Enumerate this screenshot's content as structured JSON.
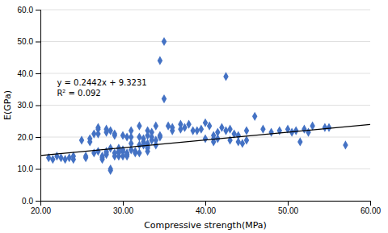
{
  "chart_data": {
    "type": "scatter",
    "xlabel": "Compressive strength(MPa)",
    "ylabel": "E(GPa)",
    "xlim": [
      20.0,
      60.0
    ],
    "ylim": [
      0.0,
      60.0
    ],
    "xticks": [
      {
        "value": 20.0,
        "label": "20.00"
      },
      {
        "value": 30.0,
        "label": "30.00"
      },
      {
        "value": 40.0,
        "label": "40.00"
      },
      {
        "value": 50.0,
        "label": "50.00"
      },
      {
        "value": 60.0,
        "label": "60.00"
      }
    ],
    "yticks": [
      {
        "value": 0.0,
        "label": "0.0"
      },
      {
        "value": 10.0,
        "label": "10.0"
      },
      {
        "value": 20.0,
        "label": "20.0"
      },
      {
        "value": 30.0,
        "label": "30.0"
      },
      {
        "value": 40.0,
        "label": "40.0"
      },
      {
        "value": 50.0,
        "label": "50.0"
      },
      {
        "value": 60.0,
        "label": "60.0"
      }
    ],
    "grid": true,
    "series": [
      {
        "type": "scatter",
        "color": "#4472C4",
        "marker": "diamond",
        "x": [
          21.0,
          21.5,
          22.0,
          22.5,
          23.0,
          23.5,
          24.0,
          24.0,
          25.0,
          25.5,
          25.5,
          26.0,
          26.0,
          26.5,
          26.5,
          27.0,
          27.0,
          27.0,
          27.0,
          27.5,
          27.5,
          27.5,
          28.0,
          28.0,
          28.0,
          28.0,
          28.0,
          28.5,
          28.5,
          28.5,
          28.5,
          29.0,
          29.0,
          29.0,
          29.0,
          29.5,
          29.5,
          29.5,
          29.5,
          30.0,
          30.0,
          30.0,
          30.0,
          30.5,
          30.5,
          30.5,
          30.5,
          31.0,
          31.0,
          31.0,
          31.0,
          31.5,
          31.5,
          32.0,
          32.0,
          32.0,
          32.0,
          32.5,
          32.5,
          32.5,
          33.0,
          33.0,
          33.0,
          33.0,
          33.0,
          33.0,
          33.5,
          33.5,
          33.5,
          34.0,
          34.0,
          34.0,
          34.5,
          34.5,
          34.5,
          35.0,
          35.0,
          35.5,
          36.0,
          36.0,
          37.0,
          37.0,
          37.5,
          38.0,
          38.5,
          39.0,
          39.5,
          40.0,
          40.0,
          40.5,
          41.0,
          41.0,
          41.0,
          41.5,
          41.5,
          42.0,
          42.5,
          42.5,
          43.0,
          43.0,
          43.5,
          44.0,
          44.0,
          44.5,
          45.0,
          45.0,
          46.0,
          47.0,
          48.0,
          49.0,
          50.0,
          50.5,
          51.0,
          51.5,
          52.0,
          52.5,
          53.0,
          54.5,
          55.0,
          57.0
        ],
        "values": [
          13.5,
          13.0,
          14.0,
          13.5,
          13.0,
          13.5,
          14.0,
          13.0,
          19.0,
          14.0,
          13.5,
          19.5,
          18.5,
          21.0,
          15.0,
          23.0,
          22.5,
          21.0,
          15.5,
          14.0,
          13.5,
          13.0,
          22.5,
          21.5,
          15.5,
          15.0,
          14.5,
          22.0,
          16.5,
          10.0,
          9.5,
          21.0,
          20.5,
          15.0,
          14.0,
          16.5,
          15.5,
          15.0,
          14.0,
          20.5,
          16.0,
          15.5,
          14.0,
          20.0,
          15.0,
          14.5,
          14.0,
          22.0,
          20.0,
          18.0,
          16.0,
          15.5,
          15.0,
          23.5,
          20.0,
          17.5,
          15.0,
          19.5,
          18.5,
          17.5,
          22.0,
          20.5,
          18.0,
          17.0,
          16.5,
          15.5,
          21.5,
          20.0,
          19.0,
          23.5,
          19.0,
          17.5,
          44.0,
          20.5,
          20.0,
          50.0,
          32.0,
          23.5,
          23.0,
          22.0,
          24.0,
          22.5,
          23.0,
          24.0,
          22.0,
          22.0,
          22.5,
          24.5,
          19.5,
          23.5,
          20.5,
          19.5,
          18.5,
          21.5,
          19.5,
          23.0,
          39.0,
          22.0,
          22.5,
          19.0,
          21.0,
          20.5,
          18.5,
          18.0,
          22.0,
          19.0,
          26.5,
          22.5,
          21.5,
          22.0,
          22.5,
          21.5,
          22.0,
          18.5,
          22.5,
          21.5,
          23.5,
          23.0,
          23.0,
          17.5
        ]
      },
      {
        "type": "line",
        "color": "black",
        "x": [
          20.0,
          60.0
        ],
        "values": [
          14.2071,
          23.9751
        ]
      }
    ],
    "annotations": [
      {
        "text": [
          "y = 0.2442x + 9.3231",
          "R² = 0.092"
        ],
        "x": 22.0,
        "y": 38.5
      }
    ]
  }
}
